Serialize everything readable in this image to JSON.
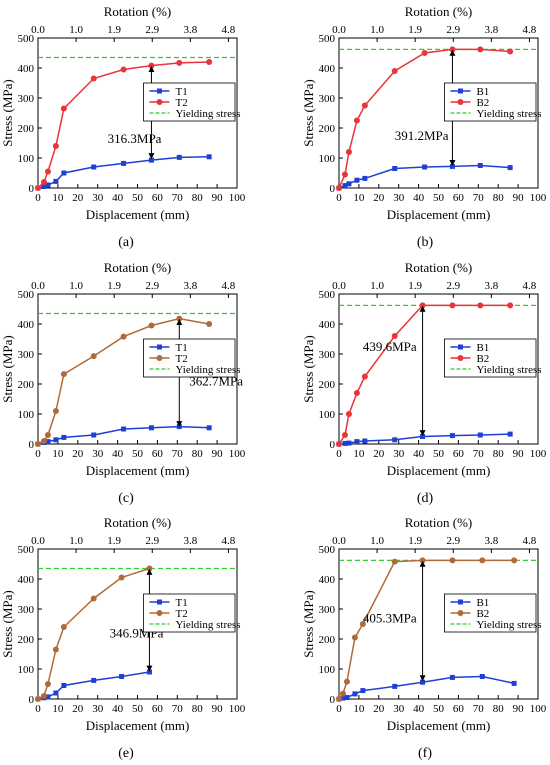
{
  "colors": {
    "t1": "#1f3fd6",
    "t2_red": "#e8343a",
    "t2_brown": "#b06a3a",
    "yield": "#33cc33"
  },
  "chart_data": [
    {
      "type": "line",
      "panel": "(a)",
      "xlabel": "Displacement (mm)",
      "ylabel": "Stress (MPa)",
      "x2label": "Rotation (%)",
      "xlim": [
        0,
        100
      ],
      "ylim": [
        0,
        500
      ],
      "xticks": [
        0,
        10,
        20,
        30,
        40,
        50,
        60,
        70,
        80,
        90,
        100
      ],
      "yticks": [
        0,
        100,
        200,
        300,
        400,
        500
      ],
      "x2ticks": [
        "0.0",
        "1.0",
        "1.9",
        "2.9",
        "3.8",
        "4.8"
      ],
      "legend_position": "center-right",
      "series": [
        {
          "name": "T1",
          "color_key": "t1",
          "marker": "square",
          "x": [
            0,
            3,
            5,
            9,
            13,
            28,
            43,
            57,
            71,
            86
          ],
          "y": [
            0,
            5,
            10,
            22,
            50,
            70,
            82,
            93,
            102,
            104
          ]
        },
        {
          "name": "T2",
          "color_key": "t2_red",
          "marker": "circle",
          "x": [
            0,
            3,
            5,
            9,
            13,
            28,
            43,
            57,
            71,
            86
          ],
          "y": [
            0,
            20,
            55,
            140,
            265,
            365,
            395,
            408,
            417,
            420
          ]
        }
      ],
      "yield_line": {
        "name": "Yielding stress",
        "y": 435
      },
      "annotation": {
        "text": "316.3MPa",
        "x": 57,
        "y_from": 95,
        "y_to": 408,
        "text_x": 35,
        "text_y": 150
      }
    },
    {
      "type": "line",
      "panel": "(b)",
      "xlabel": "Displacement (mm)",
      "ylabel": "Stress (MPa)",
      "x2label": "Rotation (%)",
      "xlim": [
        0,
        100
      ],
      "ylim": [
        0,
        500
      ],
      "xticks": [
        0,
        10,
        20,
        30,
        40,
        50,
        60,
        70,
        80,
        90,
        100
      ],
      "yticks": [
        0,
        100,
        200,
        300,
        400,
        500
      ],
      "x2ticks": [
        "0.0",
        "1.0",
        "1.9",
        "2.9",
        "3.8",
        "4.8"
      ],
      "legend_position": "center-right",
      "series": [
        {
          "name": "B1",
          "color_key": "t1",
          "marker": "square",
          "x": [
            0,
            3,
            5,
            9,
            13,
            28,
            43,
            57,
            71,
            86
          ],
          "y": [
            0,
            8,
            14,
            26,
            32,
            65,
            70,
            72,
            75,
            68
          ]
        },
        {
          "name": "B2",
          "color_key": "t2_red",
          "marker": "circle",
          "x": [
            0,
            3,
            5,
            9,
            13,
            28,
            43,
            57,
            71,
            86
          ],
          "y": [
            0,
            45,
            120,
            225,
            275,
            390,
            450,
            462,
            462,
            455
          ]
        }
      ],
      "yield_line": {
        "name": "Yielding stress",
        "y": 462
      },
      "annotation": {
        "text": "391.2MPa",
        "x": 57,
        "y_from": 72,
        "y_to": 462,
        "text_x": 28,
        "text_y": 160
      }
    },
    {
      "type": "line",
      "panel": "(c)",
      "xlabel": "Displacement (mm)",
      "ylabel": "Stress (MPa)",
      "x2label": "Rotation (%)",
      "xlim": [
        0,
        100
      ],
      "ylim": [
        0,
        500
      ],
      "xticks": [
        0,
        10,
        20,
        30,
        40,
        50,
        60,
        70,
        80,
        90,
        100
      ],
      "yticks": [
        0,
        100,
        200,
        300,
        400,
        500
      ],
      "x2ticks": [
        "0.0",
        "1.0",
        "1.9",
        "2.9",
        "3.8",
        "4.8"
      ],
      "legend_position": "center-right",
      "series": [
        {
          "name": "T1",
          "color_key": "t1",
          "marker": "square",
          "x": [
            0,
            3,
            5,
            9,
            13,
            28,
            43,
            57,
            71,
            86
          ],
          "y": [
            0,
            5,
            8,
            14,
            22,
            30,
            50,
            54,
            58,
            54
          ]
        },
        {
          "name": "T2",
          "color_key": "t2_brown",
          "marker": "circle",
          "x": [
            0,
            3,
            5,
            9,
            13,
            28,
            43,
            57,
            71,
            86
          ],
          "y": [
            0,
            10,
            30,
            110,
            233,
            293,
            358,
            395,
            418,
            400
          ]
        }
      ],
      "yield_line": {
        "name": "Yielding stress",
        "y": 435
      },
      "annotation": {
        "text": "362.7MPa",
        "x": 71,
        "y_from": 55,
        "y_to": 418,
        "text_x": 76,
        "text_y": 195
      }
    },
    {
      "type": "line",
      "panel": "(d)",
      "xlabel": "Displacement (mm)",
      "ylabel": "Stress (MPa)",
      "x2label": "Rotation (%)",
      "xlim": [
        0,
        100
      ],
      "ylim": [
        0,
        500
      ],
      "xticks": [
        0,
        10,
        20,
        30,
        40,
        50,
        60,
        70,
        80,
        90,
        100
      ],
      "yticks": [
        0,
        100,
        200,
        300,
        400,
        500
      ],
      "x2ticks": [
        "0.0",
        "1.0",
        "1.9",
        "2.9",
        "3.8",
        "4.8"
      ],
      "legend_position": "center-right",
      "series": [
        {
          "name": "B1",
          "color_key": "t1",
          "marker": "square",
          "x": [
            0,
            3,
            5,
            9,
            13,
            28,
            42,
            57,
            71,
            86
          ],
          "y": [
            0,
            2,
            3,
            8,
            10,
            14,
            25,
            28,
            30,
            33
          ]
        },
        {
          "name": "B2",
          "color_key": "t2_red",
          "marker": "circle",
          "x": [
            0,
            3,
            5,
            9,
            13,
            28,
            42,
            57,
            71,
            86
          ],
          "y": [
            0,
            30,
            100,
            170,
            225,
            360,
            462,
            462,
            462,
            462
          ]
        }
      ],
      "yield_line": {
        "name": "Yielding stress",
        "y": 462
      },
      "annotation": {
        "text": "439.6MPa",
        "x": 42,
        "y_from": 25,
        "y_to": 462,
        "text_x": 12,
        "text_y": 310
      }
    },
    {
      "type": "line",
      "panel": "(e)",
      "xlabel": "Displacement (mm)",
      "ylabel": "Stress (MPa)",
      "x2label": "Rotation (%)",
      "xlim": [
        0,
        100
      ],
      "ylim": [
        0,
        500
      ],
      "xticks": [
        0,
        10,
        20,
        30,
        40,
        50,
        60,
        70,
        80,
        90,
        100
      ],
      "yticks": [
        0,
        100,
        200,
        300,
        400,
        500
      ],
      "x2ticks": [
        "0.0",
        "1.0",
        "1.9",
        "2.9",
        "3.8",
        "4.8"
      ],
      "legend_position": "center-right",
      "series": [
        {
          "name": "T1",
          "color_key": "t1",
          "marker": "square",
          "x": [
            0,
            3,
            5,
            9,
            13,
            28,
            42,
            56
          ],
          "y": [
            0,
            4,
            7,
            20,
            45,
            62,
            75,
            90
          ]
        },
        {
          "name": "T2",
          "color_key": "t2_brown",
          "marker": "circle",
          "x": [
            0,
            3,
            5,
            9,
            13,
            28,
            42,
            56
          ],
          "y": [
            0,
            10,
            50,
            165,
            240,
            335,
            405,
            435
          ]
        }
      ],
      "yield_line": {
        "name": "Yielding stress",
        "y": 435
      },
      "annotation": {
        "text": "346.9MPa",
        "x": 56,
        "y_from": 90,
        "y_to": 435,
        "text_x": 36,
        "text_y": 205
      }
    },
    {
      "type": "line",
      "panel": "(f)",
      "xlabel": "Displacement (mm)",
      "ylabel": "Stress (MPa)",
      "x2label": "Rotation (%)",
      "xlim": [
        0,
        100
      ],
      "ylim": [
        0,
        500
      ],
      "xticks": [
        0,
        10,
        20,
        30,
        40,
        50,
        60,
        70,
        80,
        90,
        100
      ],
      "yticks": [
        0,
        100,
        200,
        300,
        400,
        500
      ],
      "x2ticks": [
        "0.0",
        "1.0",
        "1.9",
        "2.9",
        "3.8",
        "4.8"
      ],
      "legend_position": "center-right",
      "series": [
        {
          "name": "B1",
          "color_key": "t1",
          "marker": "square",
          "x": [
            0,
            2,
            4,
            8,
            12,
            28,
            42,
            57,
            72,
            88
          ],
          "y": [
            0,
            3,
            5,
            17,
            28,
            42,
            56,
            72,
            75,
            52
          ]
        },
        {
          "name": "B2",
          "color_key": "t2_brown",
          "marker": "circle",
          "x": [
            0,
            2,
            4,
            8,
            12,
            28,
            42,
            57,
            72,
            88
          ],
          "y": [
            0,
            18,
            58,
            205,
            250,
            458,
            462,
            462,
            462,
            462
          ]
        }
      ],
      "yield_line": {
        "name": "Yielding stress",
        "y": 462
      },
      "annotation": {
        "text": "405.3MPa",
        "x": 42,
        "y_from": 58,
        "y_to": 462,
        "text_x": 12,
        "text_y": 255
      }
    }
  ]
}
